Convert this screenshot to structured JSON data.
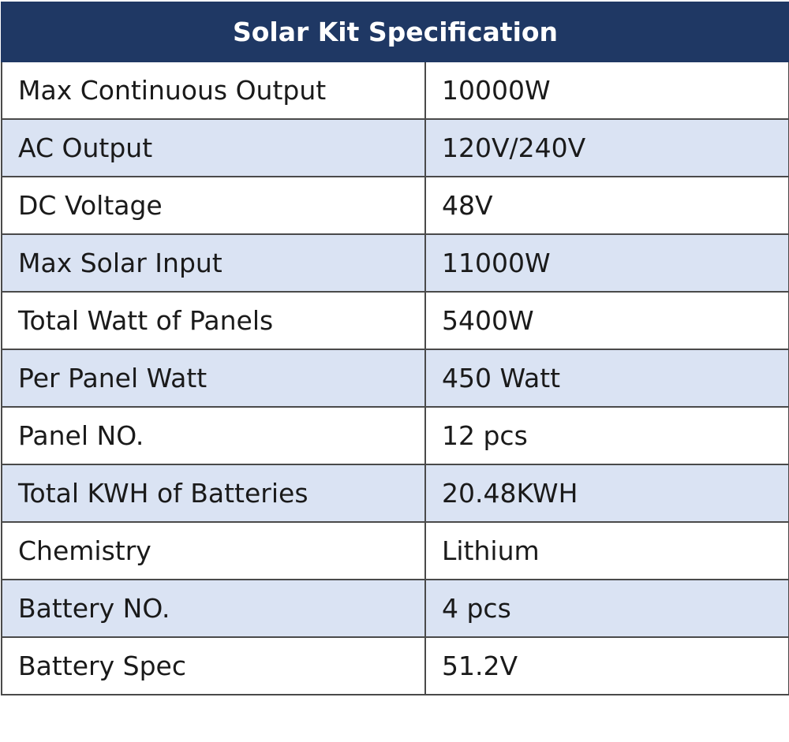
{
  "table": {
    "title": "Solar Kit Specification",
    "colors": {
      "header_bg": "#1f3864",
      "header_text": "#ffffff",
      "row_alt_bg": "#dae3f3",
      "row_bg": "#ffffff",
      "border": "#4a4a4a"
    },
    "rows": [
      {
        "label": "Max Continuous Output",
        "value": "10000W"
      },
      {
        "label": "AC Output",
        "value": "120V/240V"
      },
      {
        "label": "DC Voltage",
        "value": "48V"
      },
      {
        "label": "Max Solar Input",
        "value": "11000W"
      },
      {
        "label": "Total Watt of Panels",
        "value": "5400W"
      },
      {
        "label": "Per Panel Watt",
        "value": "450 Watt"
      },
      {
        "label": "Panel NO.",
        "value": "12 pcs"
      },
      {
        "label": "Total KWH of Batteries",
        "value": "20.48KWH"
      },
      {
        "label": "Chemistry",
        "value": "Lithium"
      },
      {
        "label": "Battery NO.",
        "value": "4 pcs"
      },
      {
        "label": "Battery Spec",
        "value": "51.2V"
      }
    ]
  }
}
